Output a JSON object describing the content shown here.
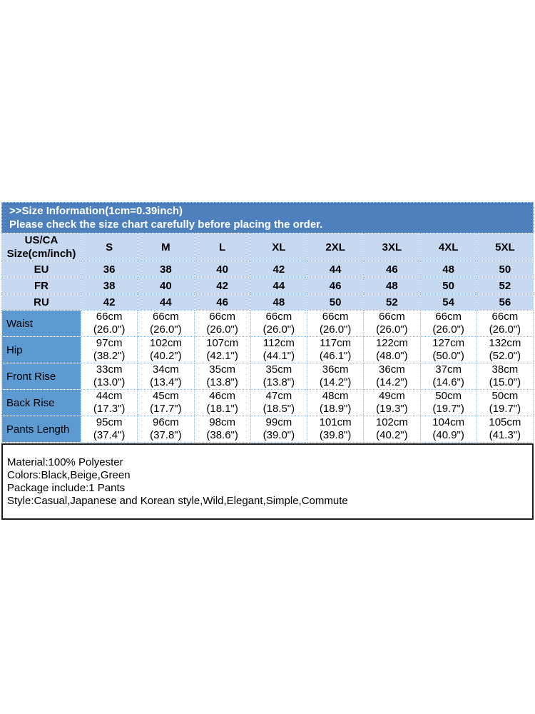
{
  "banner": {
    "line1": ">>Size Information(1cm=0.39inch)",
    "line2": "Please check the size chart carefully before placing the order."
  },
  "table": {
    "corner": "US/CA\nSize(cm/inch)",
    "size_headers": [
      "S",
      "M",
      "L",
      "XL",
      "2XL",
      "3XL",
      "4XL",
      "5XL"
    ],
    "rows": [
      {
        "label": "EU",
        "cells": [
          "36",
          "38",
          "40",
          "42",
          "44",
          "46",
          "48",
          "50"
        ]
      },
      {
        "label": "FR",
        "cells": [
          "38",
          "40",
          "42",
          "44",
          "46",
          "48",
          "50",
          "52"
        ]
      },
      {
        "label": "RU",
        "cells": [
          "42",
          "44",
          "46",
          "48",
          "50",
          "52",
          "54",
          "56"
        ]
      },
      {
        "label": "Waist",
        "cells": [
          "66cm\n(26.0\")",
          "66cm\n(26.0\")",
          "66cm\n(26.0\")",
          "66cm\n(26.0\")",
          "66cm\n(26.0\")",
          "66cm\n(26.0\")",
          "66cm\n(26.0\")",
          "66cm\n(26.0\")"
        ]
      },
      {
        "label": "Hip",
        "cells": [
          "97cm\n(38.2\")",
          "102cm\n(40.2\")",
          "107cm\n(42.1\")",
          "112cm\n(44.1\")",
          "117cm\n(46.1\")",
          "122cm\n(48.0\")",
          "127cm\n(50.0\")",
          "132cm\n(52.0\")"
        ]
      },
      {
        "label": "Front Rise",
        "cells": [
          "33cm\n(13.0\")",
          "34cm\n(13.4\")",
          "35cm\n(13.8\")",
          "35cm\n(13.8\")",
          "36cm\n(14.2\")",
          "36cm\n(14.2\")",
          "37cm\n(14.6\")",
          "38cm\n(15.0\")"
        ]
      },
      {
        "label": "Back Rise",
        "cells": [
          "44cm\n(17.3\")",
          "45cm\n(17.7\")",
          "46cm\n(18.1\")",
          "47cm\n(18.5\")",
          "48cm\n(18.9\")",
          "49cm\n(19.3\")",
          "50cm\n(19.7\")",
          "50cm\n(19.7\")"
        ]
      },
      {
        "label": "Pants Length",
        "cells": [
          "95cm\n(37.4\")",
          "96cm\n(37.8\")",
          "98cm\n(38.6\")",
          "99cm\n(39.0\")",
          "101cm\n(39.8\")",
          "102cm\n(40.2\")",
          "104cm\n(40.9\")",
          "105cm\n(41.3\")"
        ]
      }
    ]
  },
  "details": {
    "lines": [
      "Material:100% Polyester",
      "Colors:Black,Beige,Green",
      "Package include:1 Pants",
      "Style:Casual,Japanese and Korean style,Wild,Elegant,Simple,Commute"
    ]
  },
  "colors": {
    "banner_bg": "#4d80bc",
    "light_cell_bg": "#c6d9f1",
    "label_cell_bg": "#5d9ad2",
    "grid_border": "#8fb7e0",
    "details_border": "#1f1f1f"
  }
}
